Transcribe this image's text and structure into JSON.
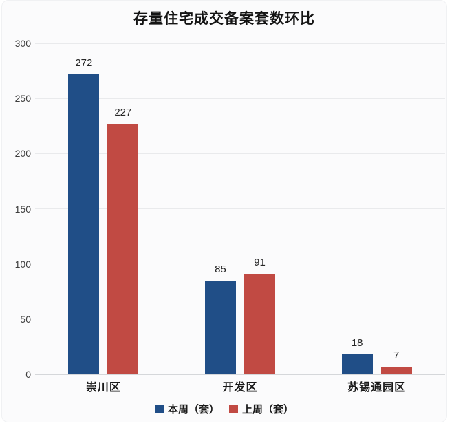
{
  "chart_data": {
    "type": "bar",
    "title": "存量住宅成交备案套数环比",
    "categories": [
      "崇川区",
      "开发区",
      "苏锡通园区"
    ],
    "series": [
      {
        "name": "本周（套）",
        "color": "#204E87",
        "values": [
          272,
          85,
          18
        ]
      },
      {
        "name": "上周（套）",
        "color": "#C14A43",
        "values": [
          227,
          91,
          7
        ]
      }
    ],
    "xlabel": "",
    "ylabel": "",
    "ylim": [
      0,
      300
    ],
    "ytick_step": 50,
    "ytick_labels": [
      "0",
      "50",
      "100",
      "150",
      "200",
      "250",
      "300"
    ],
    "grid": true,
    "legend_position": "bottom",
    "value_labels_shown": true
  }
}
